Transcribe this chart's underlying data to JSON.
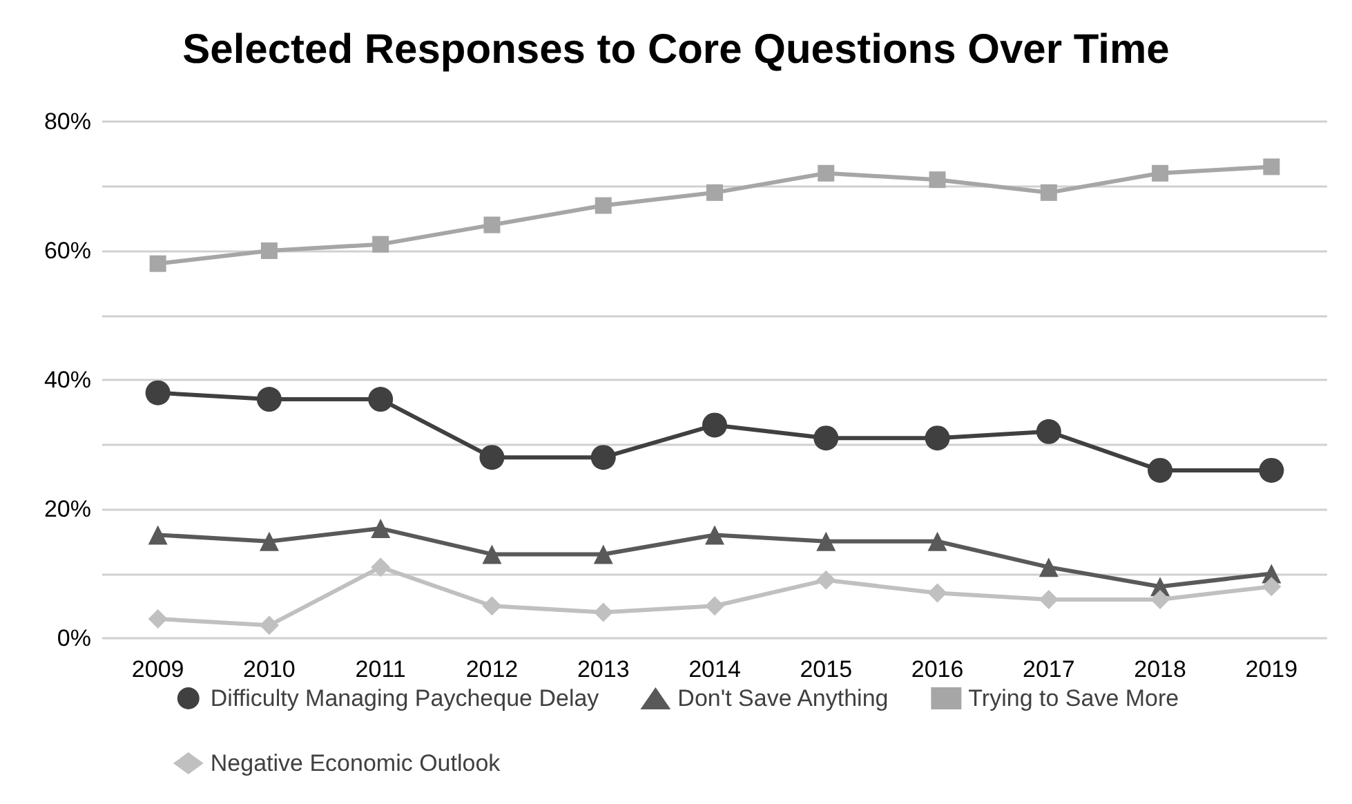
{
  "chart_data": {
    "type": "line",
    "title": "Selected Responses to Core Questions Over Time",
    "categories": [
      "2009",
      "2010",
      "2011",
      "2012",
      "2013",
      "2014",
      "2015",
      "2016",
      "2017",
      "2018",
      "2019"
    ],
    "series": [
      {
        "name": "Difficulty Managing Paycheque Delay",
        "color": "#404040",
        "marker": "circle",
        "values": [
          38,
          37,
          37,
          28,
          28,
          33,
          31,
          31,
          32,
          26,
          26
        ]
      },
      {
        "name": "Don't Save Anything",
        "color": "#595959",
        "marker": "triangle",
        "values": [
          16,
          15,
          17,
          13,
          13,
          16,
          15,
          15,
          11,
          8,
          10
        ]
      },
      {
        "name": "Trying to Save More",
        "color": "#a6a6a6",
        "marker": "square",
        "values": [
          58,
          60,
          61,
          64,
          67,
          69,
          72,
          71,
          69,
          72,
          73
        ]
      },
      {
        "name": "Negative Economic Outlook",
        "color": "#c0c0c0",
        "marker": "diamond",
        "values": [
          3,
          2,
          11,
          5,
          4,
          5,
          9,
          7,
          6,
          6,
          8
        ]
      }
    ],
    "ylim": [
      0,
      80
    ],
    "yticks": [
      {
        "value": 0,
        "label": "0%"
      },
      {
        "value": 10,
        "label": null
      },
      {
        "value": 20,
        "label": "20%"
      },
      {
        "value": 30,
        "label": null
      },
      {
        "value": 40,
        "label": "40%"
      },
      {
        "value": 50,
        "label": null
      },
      {
        "value": 60,
        "label": "60%"
      },
      {
        "value": 70,
        "label": null
      },
      {
        "value": 80,
        "label": "80%"
      }
    ],
    "grid": "y",
    "legend": "bottom"
  }
}
